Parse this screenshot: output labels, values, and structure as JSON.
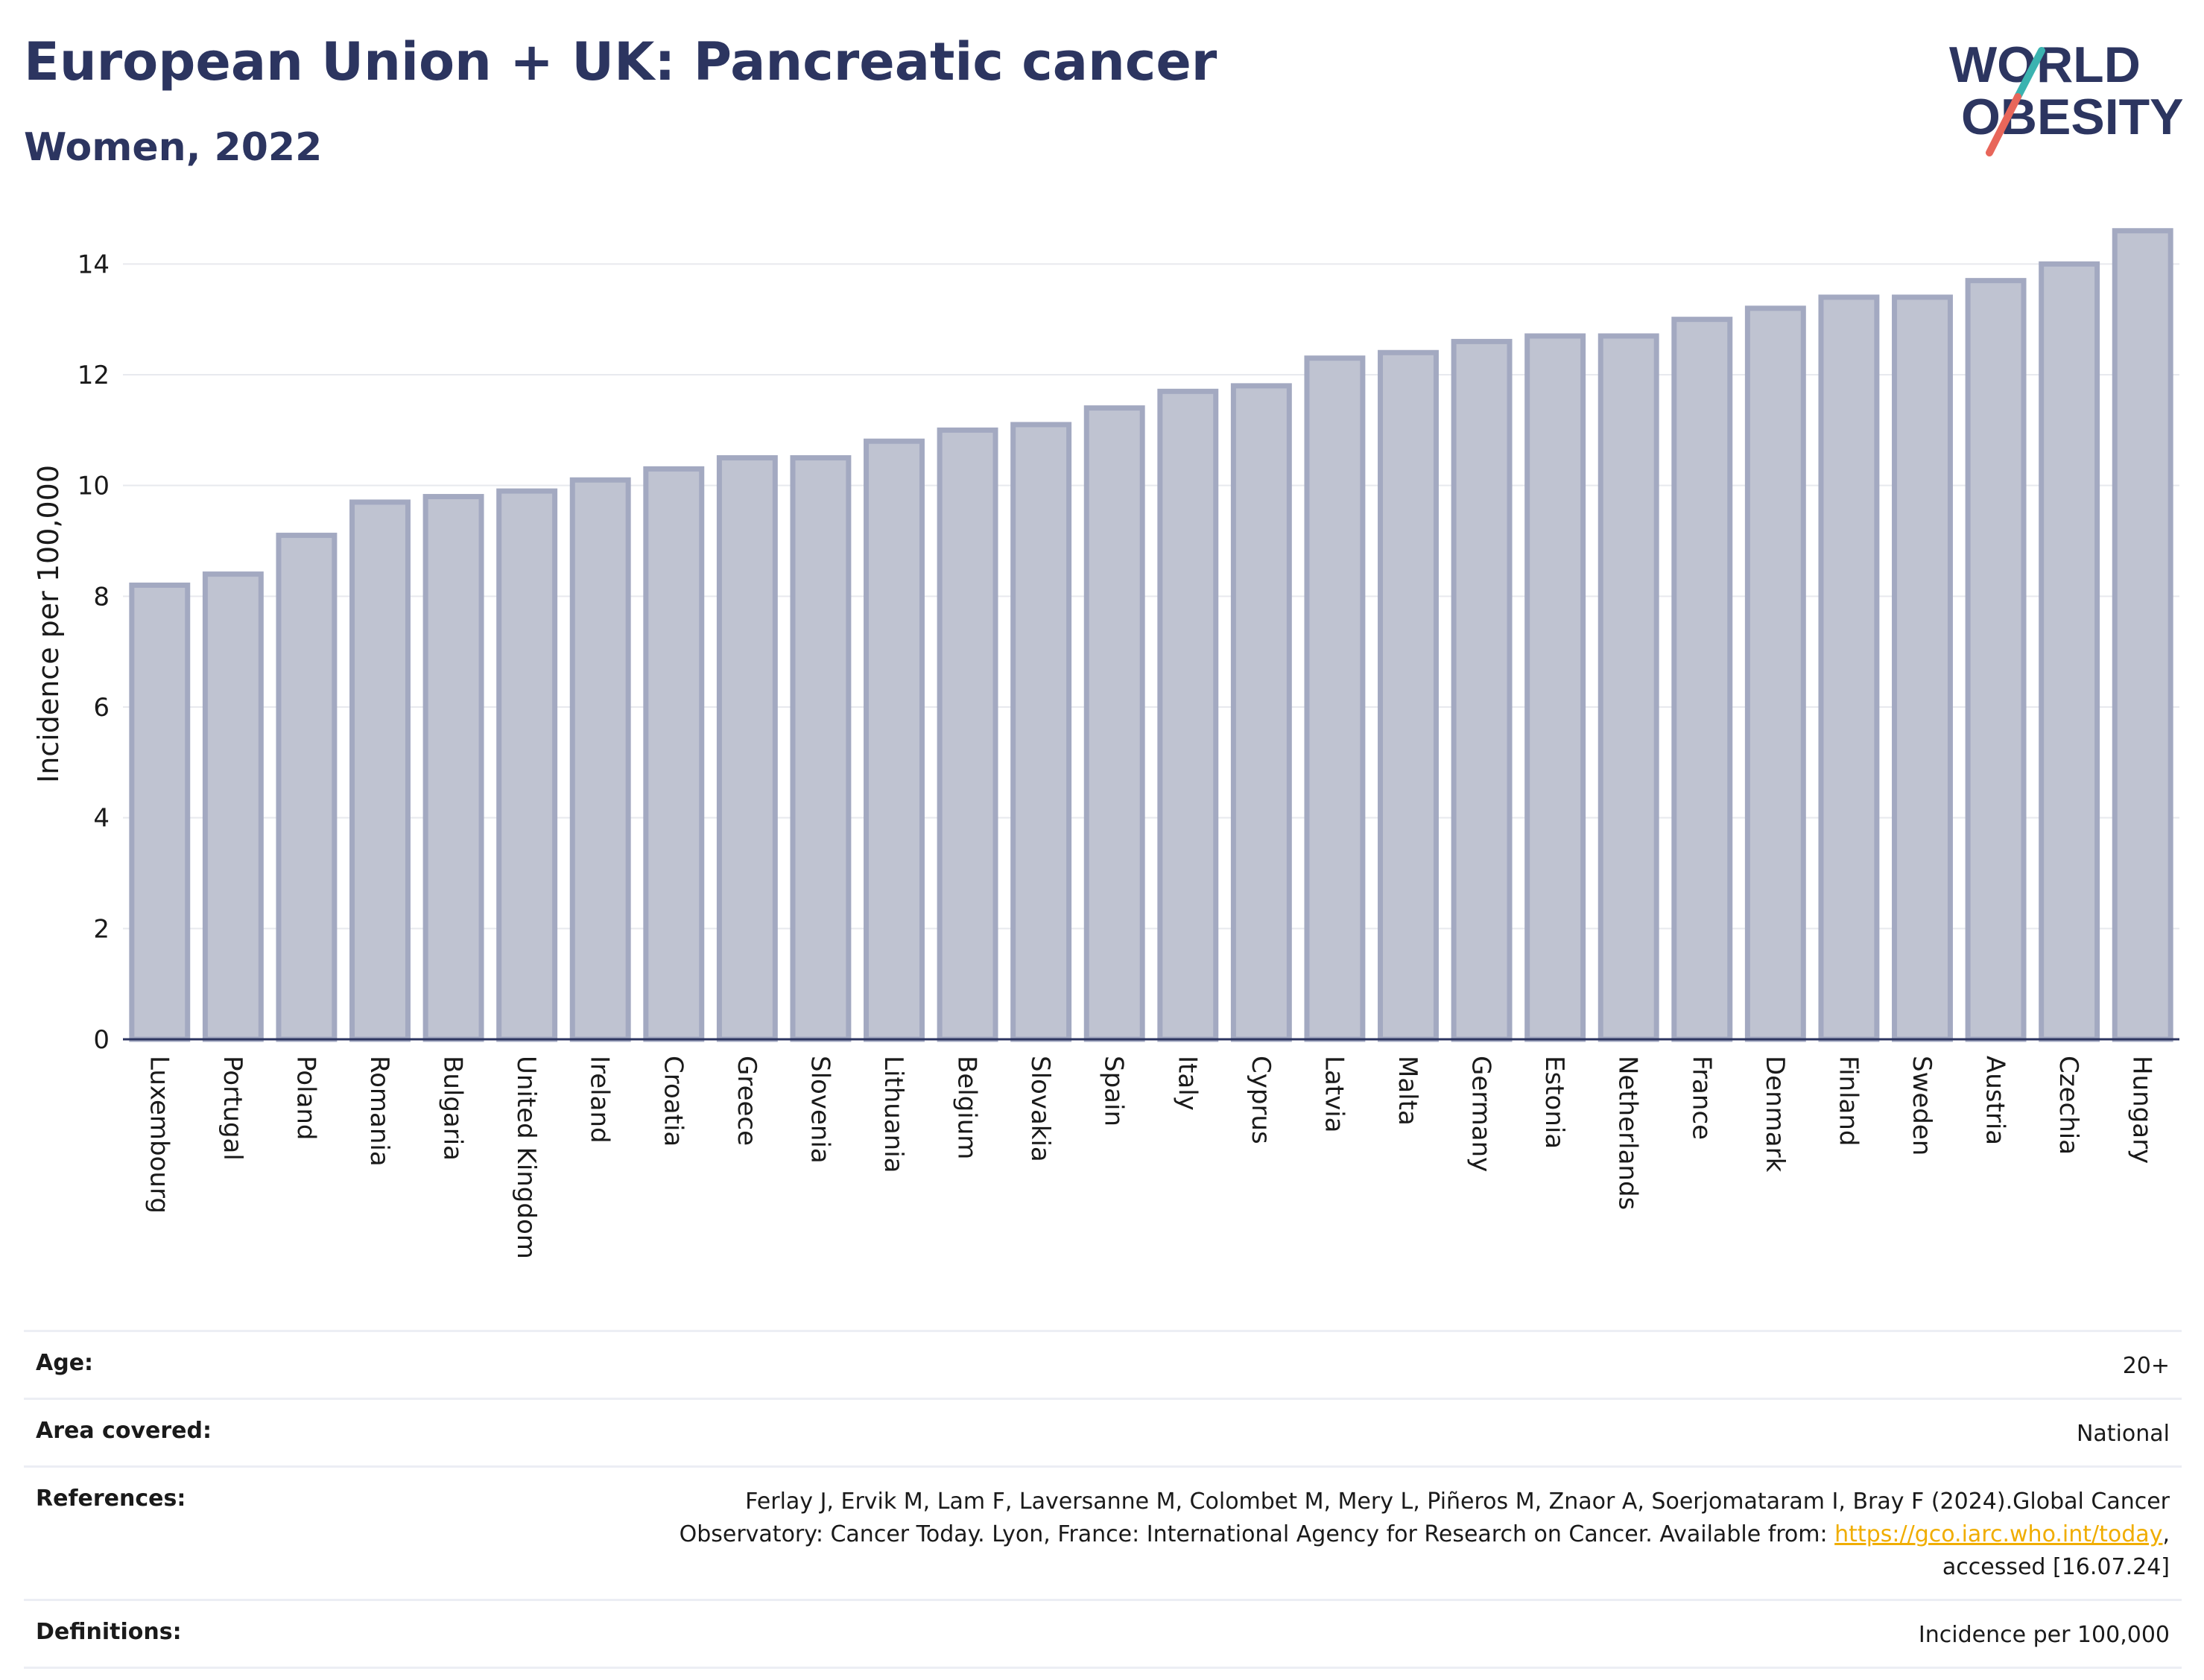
{
  "header": {
    "title": "European Union + UK: Pancreatic cancer",
    "subtitle": "Women, 2022"
  },
  "logo": {
    "line1": "WORLD",
    "line2": "OBESITY",
    "colors": {
      "text": "#2c3560",
      "slash_teal": "#3bb3b0",
      "slash_red": "#e8665a"
    }
  },
  "chart_data": {
    "type": "bar",
    "ylabel": "Incidence per 100,000",
    "ylim": [
      0,
      15
    ],
    "yticks": [
      0,
      2,
      4,
      6,
      8,
      10,
      12,
      14
    ],
    "grid": true,
    "bar_color": "#bfc3d1",
    "bar_edge_color": "#a3a9c1",
    "categories": [
      "Luxembourg",
      "Portugal",
      "Poland",
      "Romania",
      "Bulgaria",
      "United Kingdom",
      "Ireland",
      "Croatia",
      "Greece",
      "Slovenia",
      "Lithuania",
      "Belgium",
      "Slovakia",
      "Spain",
      "Italy",
      "Cyprus",
      "Latvia",
      "Malta",
      "Germany",
      "Estonia",
      "Netherlands",
      "France",
      "Denmark",
      "Finland",
      "Sweden",
      "Austria",
      "Czechia",
      "Hungary"
    ],
    "values": [
      8.2,
      8.4,
      9.1,
      9.7,
      9.8,
      9.9,
      10.1,
      10.3,
      10.5,
      10.5,
      10.8,
      11.0,
      11.1,
      11.4,
      11.7,
      11.8,
      12.3,
      12.4,
      12.6,
      12.7,
      12.7,
      13.0,
      13.2,
      13.4,
      13.4,
      13.7,
      14.0,
      14.6
    ]
  },
  "meta": {
    "age_label": "Age:",
    "age_value": "20+",
    "area_label": "Area covered:",
    "area_value": "National",
    "references_label": "References:",
    "references_text_1": "Ferlay J, Ervik M, Lam F, Laversanne M, Colombet M, Mery L, Piñeros M, Znaor A, Soerjomataram I, Bray F (2024).Global Cancer Observatory: Cancer Today. Lyon, France: International Agency for Research on Cancer. Available from: ",
    "references_link": "https://gco.iarc.who.int/today",
    "references_text_2": ", accessed [16.07.24]",
    "definitions_label": "Definitions:",
    "definitions_value": "Incidence per 100,000",
    "link_color": "#f0ad00"
  }
}
